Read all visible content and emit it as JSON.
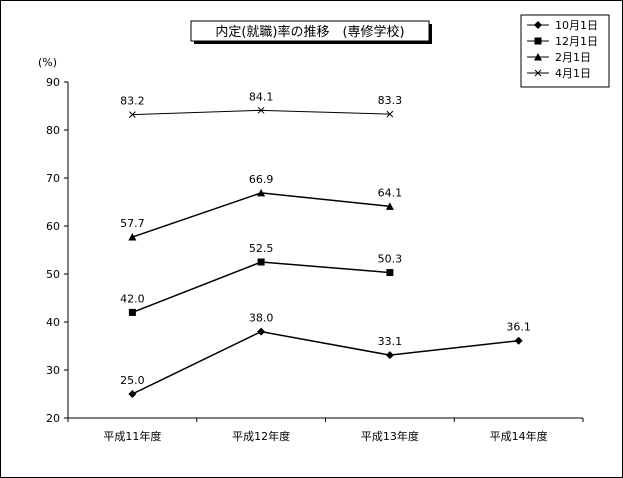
{
  "chart_data": {
    "type": "line",
    "title": "内定(就職)率の推移　(専修学校)",
    "y_unit": "(%)",
    "categories": [
      "平成11年度",
      "平成12年度",
      "平成13年度",
      "平成14年度"
    ],
    "ylim": [
      20,
      90
    ],
    "yticks": [
      20,
      30,
      40,
      50,
      60,
      70,
      80,
      90
    ],
    "grid": false,
    "legend_position": "top-right",
    "series": [
      {
        "name": "10月1日",
        "marker": "diamond",
        "values": [
          25.0,
          38.0,
          33.1,
          36.1
        ],
        "labels": [
          "25.0",
          "38.0",
          "33.1",
          "36.1"
        ]
      },
      {
        "name": "12月1日",
        "marker": "square",
        "values": [
          42.0,
          52.5,
          50.3,
          null
        ],
        "labels": [
          "42.0",
          "52.5",
          "50.3",
          ""
        ]
      },
      {
        "name": "2月1日",
        "marker": "triangle",
        "values": [
          57.7,
          66.9,
          64.1,
          null
        ],
        "labels": [
          "57.7",
          "66.9",
          "64.1",
          ""
        ]
      },
      {
        "name": "4月1日",
        "marker": "x",
        "values": [
          83.2,
          84.1,
          83.3,
          null
        ],
        "labels": [
          "83.2",
          "84.1",
          "83.3",
          ""
        ]
      }
    ],
    "colors": {
      "line": "#000000",
      "background": "#ffffff"
    }
  }
}
